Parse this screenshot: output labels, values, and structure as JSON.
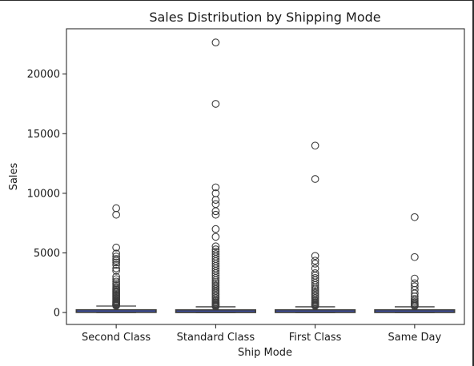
{
  "chart_data": {
    "type": "box",
    "title": "Sales Distribution by Shipping Mode",
    "xlabel": "Ship Mode",
    "ylabel": "Sales",
    "ylim": [
      -1000,
      23800
    ],
    "yticks": [
      0,
      5000,
      10000,
      15000,
      20000
    ],
    "grid": false,
    "colors": {
      "box_fill": "#3b5bff",
      "box_edge": "#3d3d3d"
    },
    "categories": [
      "Second Class",
      "Standard Class",
      "First Class",
      "Same Day"
    ],
    "boxes": [
      {
        "category": "Second Class",
        "q1": 20,
        "median": 55,
        "q3": 220,
        "whisker_low": 0.5,
        "whisker_high": 540,
        "outliers": [
          8750,
          8200,
          5450,
          4950,
          4700,
          4500,
          4350,
          4200,
          4000,
          3700,
          3500,
          3000,
          2800,
          2600,
          2450,
          2300,
          2150,
          2000,
          1900,
          1800,
          1700,
          1600,
          1500,
          1400,
          1300,
          1200,
          1100,
          1000,
          920,
          860,
          800,
          740,
          690,
          640,
          600,
          570
        ]
      },
      {
        "category": "Standard Class",
        "q1": 17,
        "median": 54,
        "q3": 205,
        "whisker_low": 0.5,
        "whisker_high": 480,
        "outliers": [
          22650,
          17500,
          10500,
          10000,
          9450,
          9100,
          8500,
          8200,
          7000,
          6350,
          5550,
          5300,
          5100,
          4900,
          4700,
          4500,
          4300,
          4100,
          3900,
          3700,
          3500,
          3300,
          3100,
          2900,
          2700,
          2550,
          2400,
          2250,
          2100,
          1950,
          1800,
          1650,
          1500,
          1350,
          1200,
          1050,
          950,
          850,
          760,
          680,
          610,
          550,
          510
        ]
      },
      {
        "category": "First Class",
        "q1": 18,
        "median": 53,
        "q3": 210,
        "whisker_low": 0.5,
        "whisker_high": 480,
        "outliers": [
          14000,
          11200,
          4750,
          4350,
          4100,
          3700,
          3300,
          3100,
          2900,
          2700,
          2500,
          2300,
          2100,
          1950,
          1800,
          1650,
          1500,
          1350,
          1200,
          1050,
          950,
          850,
          760,
          680,
          610,
          550
        ]
      },
      {
        "category": "Same Day",
        "q1": 18,
        "median": 55,
        "q3": 210,
        "whisker_low": 0.5,
        "whisker_high": 480,
        "outliers": [
          8000,
          4650,
          2850,
          2450,
          2200,
          1900,
          1600,
          1350,
          1150,
          1000,
          880,
          770,
          680,
          600,
          540
        ]
      }
    ]
  }
}
